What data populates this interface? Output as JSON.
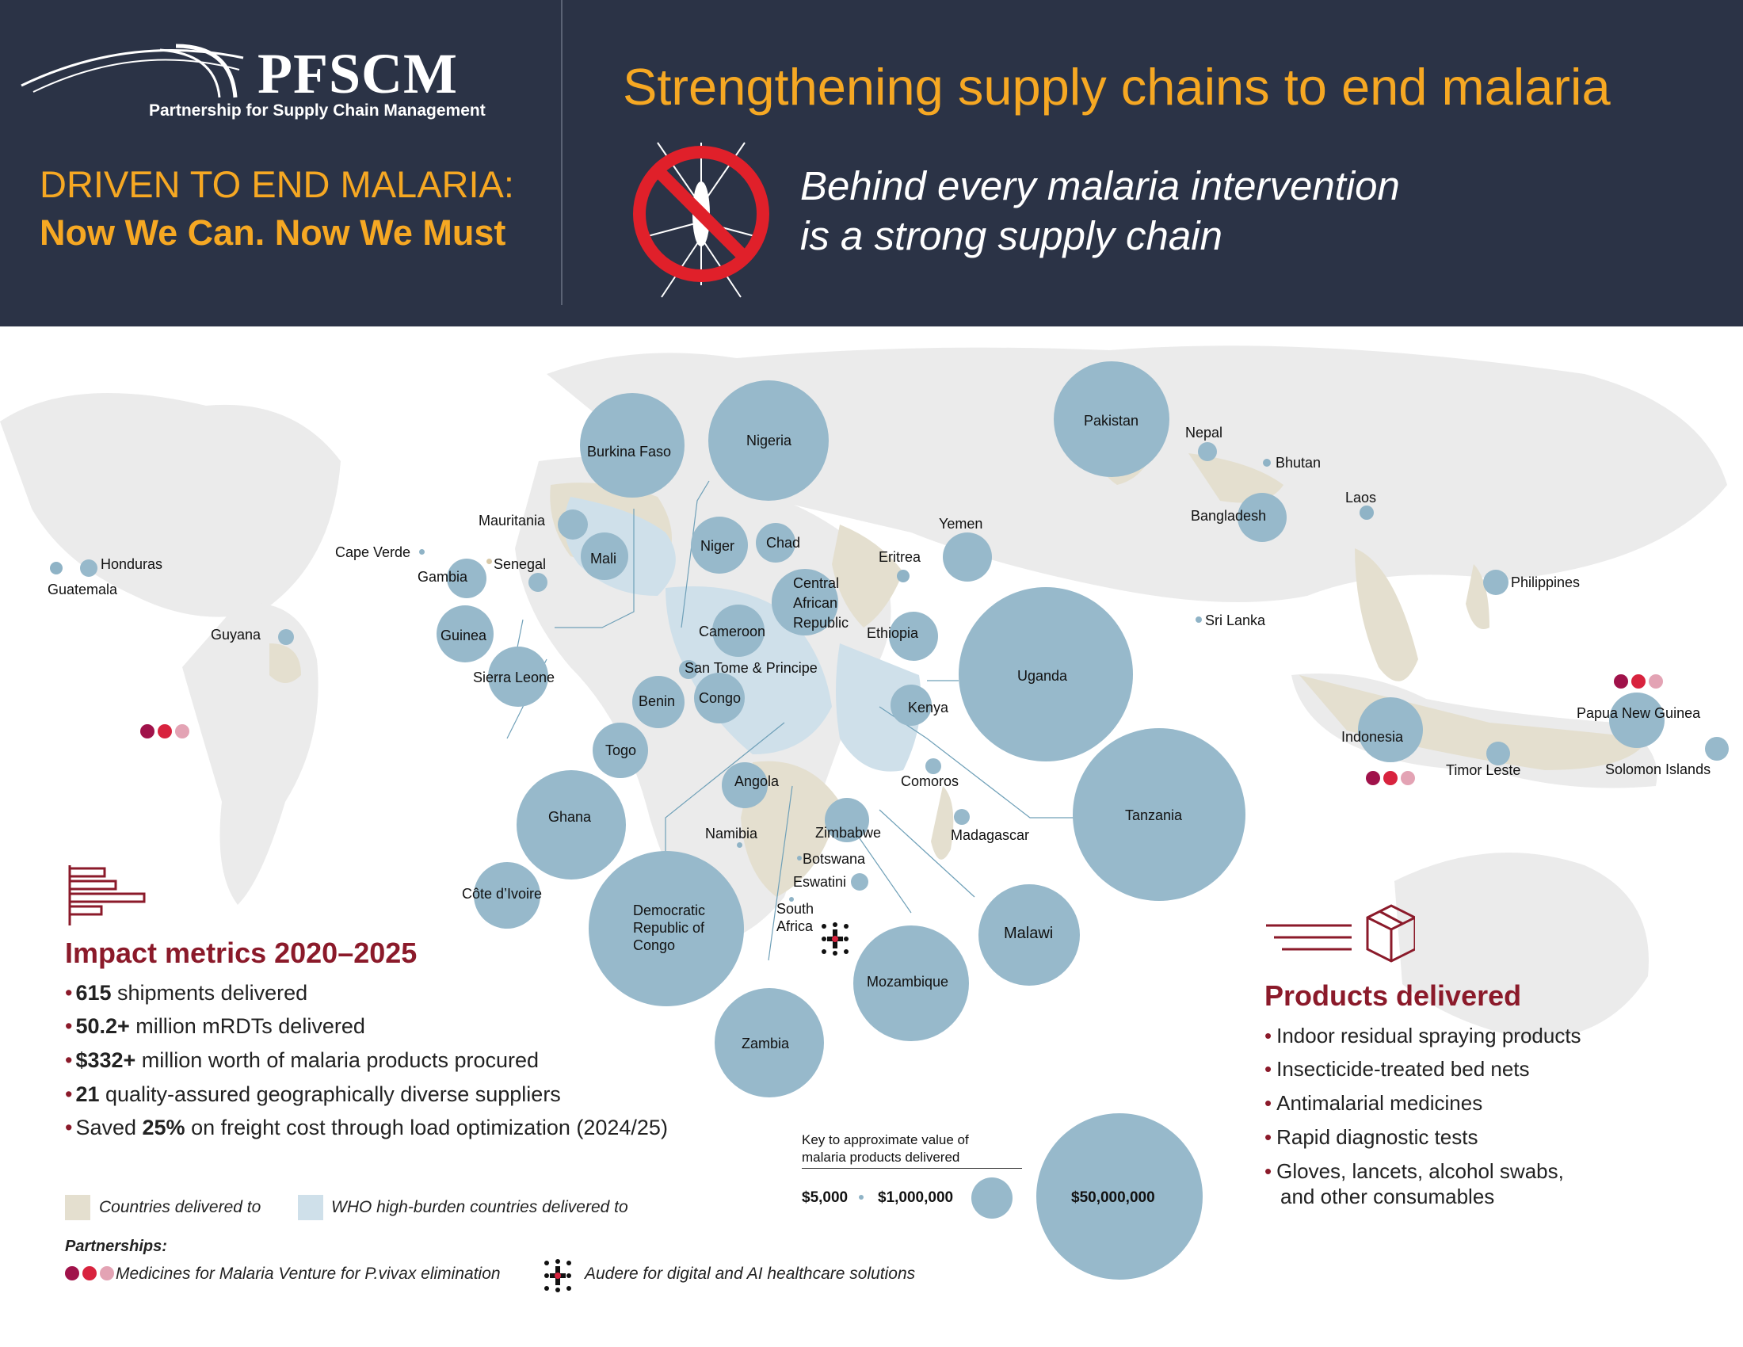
{
  "header": {
    "logo_name": "PFSCM",
    "logo_subtitle": "Partnership for Supply Chain Management",
    "driven_line1": "DRIVEN TO END MALARIA:",
    "driven_line2": "Now We Can. Now We Must",
    "main_title": "Strengthening supply chains to end malaria",
    "tagline_line1": "Behind every malaria intervention",
    "tagline_line2": "is a strong supply chain",
    "accent_color": "#f6a823",
    "background_color": "#2b3346"
  },
  "map": {
    "countries": [
      {
        "label": "Burkina Faso"
      },
      {
        "label": "Nigeria"
      },
      {
        "label": "Pakistan"
      },
      {
        "label": "Nepal"
      },
      {
        "label": "Bhutan"
      },
      {
        "label": "Laos"
      },
      {
        "label": "Bangladesh"
      },
      {
        "label": "Mauritania"
      },
      {
        "label": "Mali"
      },
      {
        "label": "Niger"
      },
      {
        "label": "Chad"
      },
      {
        "label": "Yemen"
      },
      {
        "label": "Cape Verde"
      },
      {
        "label": "Senegal"
      },
      {
        "label": "Gambia"
      },
      {
        "label": "Eritrea"
      },
      {
        "label": "Honduras"
      },
      {
        "label": "Guatemala"
      },
      {
        "label": "Central African Republic"
      },
      {
        "label": "Philippines"
      },
      {
        "label": "Sri Lanka"
      },
      {
        "label": "Guinea"
      },
      {
        "label": "Cameroon"
      },
      {
        "label": "Ethiopia"
      },
      {
        "label": "Guyana"
      },
      {
        "label": "Uganda"
      },
      {
        "label": "San Tome & Principe"
      },
      {
        "label": "Sierra Leone"
      },
      {
        "label": "Congo"
      },
      {
        "label": "Benin"
      },
      {
        "label": "Kenya"
      },
      {
        "label": "Papua New Guinea"
      },
      {
        "label": "Indonesia"
      },
      {
        "label": "Togo"
      },
      {
        "label": "Angola"
      },
      {
        "label": "Comoros"
      },
      {
        "label": "Timor Leste"
      },
      {
        "label": "Solomon Islands"
      },
      {
        "label": "Ghana"
      },
      {
        "label": "Tanzania"
      },
      {
        "label": "Namibia"
      },
      {
        "label": "Zimbabwe"
      },
      {
        "label": "Madagascar"
      },
      {
        "label": "Botswana"
      },
      {
        "label": "Eswatini"
      },
      {
        "label": "Côte d’Ivoire"
      },
      {
        "label": "Malawi"
      },
      {
        "label": "South Africa"
      },
      {
        "label": "Democratic Republic of Congo"
      },
      {
        "label": "Mozambique"
      },
      {
        "label": "Zambia"
      }
    ],
    "bubble_color": "#97b9cb",
    "land_delivered_color": "#e4dfcf",
    "land_high_burden_color": "#cfe0ea",
    "land_other_color": "#ebebeb"
  },
  "impact": {
    "title": "Impact metrics 2020–2025",
    "metrics": [
      {
        "bold": "615",
        "text": " shipments delivered"
      },
      {
        "bold": "50.2+",
        "text": " million mRDTs delivered"
      },
      {
        "bold": "$332+",
        "text": " million worth of malaria products procured"
      },
      {
        "bold": "21",
        "text": " quality-assured geographically diverse suppliers"
      },
      {
        "prefix": "Saved ",
        "bold": "25%",
        "text": " on freight cost through load optimization (2024/25)"
      }
    ]
  },
  "legend": {
    "countries_delivered": "Countries delivered to",
    "who_high_burden": "WHO high-burden countries delivered to"
  },
  "partnerships": {
    "title": "Partnerships:",
    "mmv": "Medicines for Malaria Venture for P.vivax elimination",
    "audere": "Audere for digital and AI healthcare solutions",
    "mmv_colors": [
      "#a0124a",
      "#d8233e",
      "#e3a3b4"
    ]
  },
  "key": {
    "title_line1": "Key to approximate value of",
    "title_line2": "malaria products delivered",
    "values": [
      "$5,000",
      "$1,000,000",
      "$50,000,000"
    ]
  },
  "products": {
    "title": "Products delivered",
    "items": [
      "Indoor residual spraying products",
      "Insecticide-treated bed nets",
      "Antimalarial medicines",
      "Rapid diagnostic tests",
      "Gloves, lancets, alcohol swabs,",
      "and other consumables"
    ]
  }
}
